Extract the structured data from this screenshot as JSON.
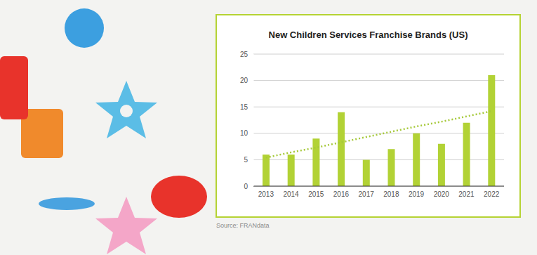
{
  "chart_data": {
    "type": "bar",
    "title": "New Children Services Franchise Brands (US)",
    "source": "Source: FRANdata",
    "categories": [
      "2013",
      "2014",
      "2015",
      "2016",
      "2017",
      "2018",
      "2019",
      "2020",
      "2021",
      "2022"
    ],
    "series": [
      {
        "type": "bar",
        "color": "#b2d235",
        "values": [
          6,
          6,
          9,
          14,
          5,
          7,
          10,
          8,
          12,
          21
        ]
      },
      {
        "type": "line",
        "color": "#a6c93a",
        "line_style": "dotted",
        "values": [
          5.4,
          6.4,
          7.3,
          8.3,
          9.3,
          10.3,
          11.3,
          12.2,
          13.2,
          14.2
        ]
      }
    ],
    "ylim": [
      0,
      25
    ],
    "yticks": [
      0,
      5,
      10,
      15,
      20,
      25
    ],
    "grid": true
  }
}
